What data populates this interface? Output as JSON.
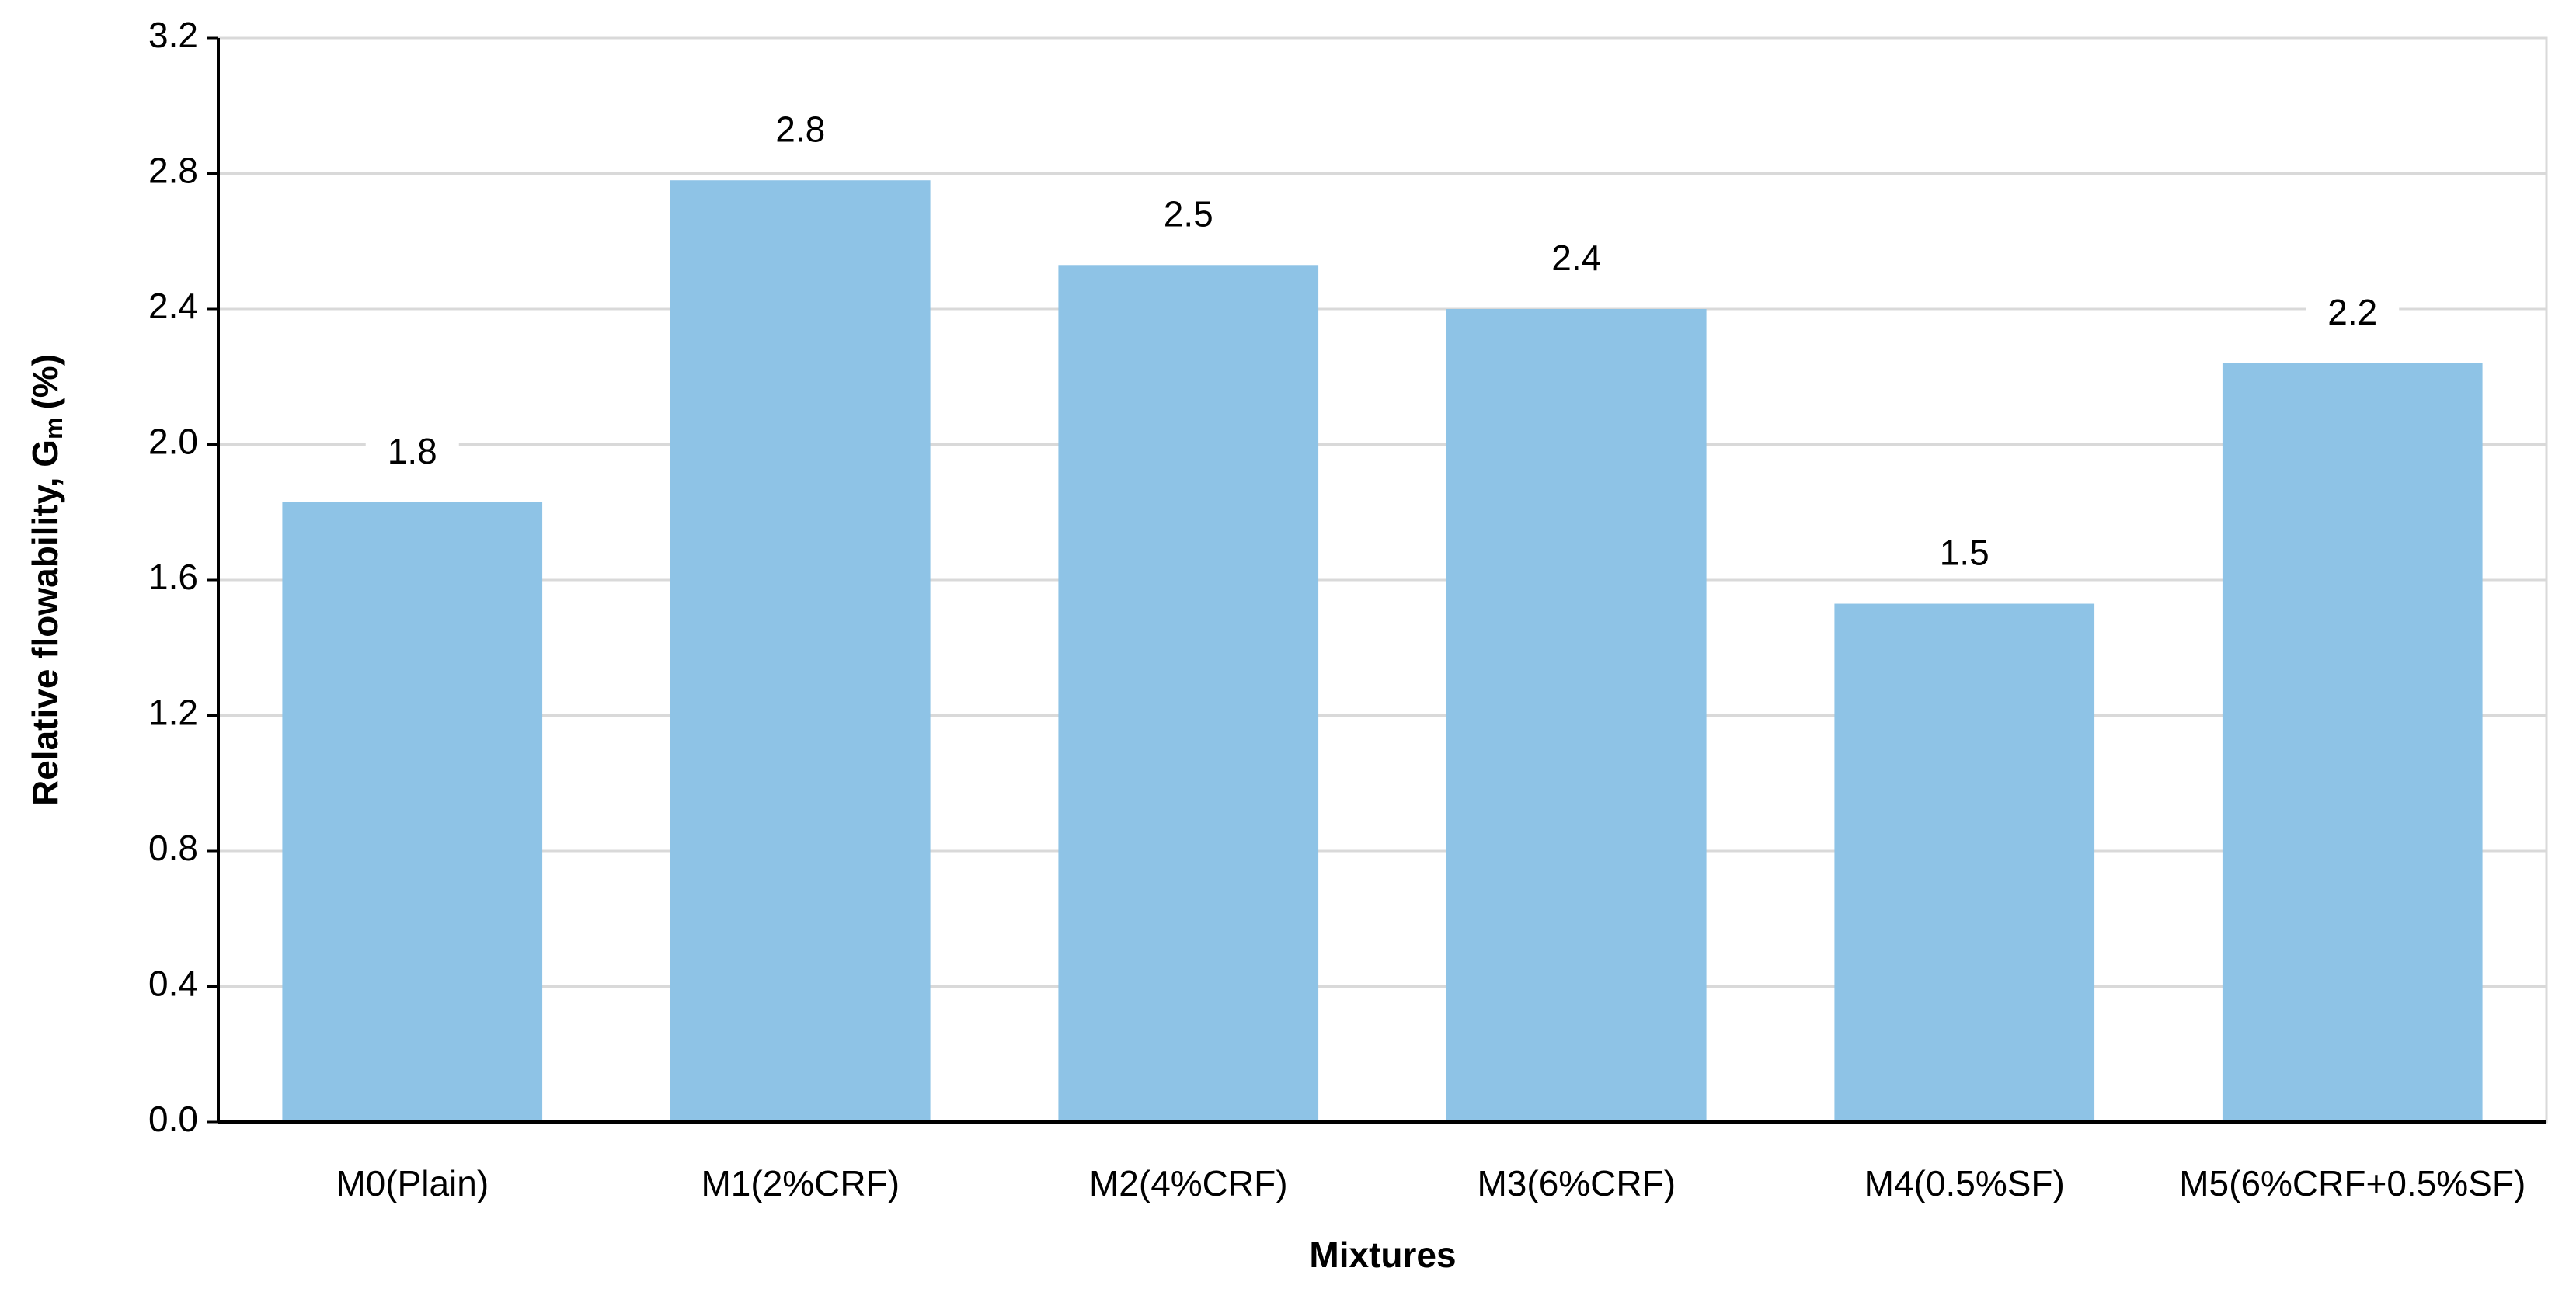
{
  "chart_data": {
    "type": "bar",
    "xlabel": "Mixtures",
    "ylabel": {
      "text": "Relative flowability, G",
      "subscript": "m",
      "suffix": "(%)"
    },
    "categories": [
      "M0(Plain)",
      "M1(2%CRF)",
      "M2(4%CRF)",
      "M3(6%CRF)",
      "M4(0.5%SF)",
      "M5(6%CRF+0.5%SF)"
    ],
    "values": [
      1.83,
      2.78,
      2.53,
      2.4,
      1.53,
      2.24
    ],
    "value_labels": [
      "1.8",
      "2.8",
      "2.5",
      "2.4",
      "1.5",
      "2.2"
    ],
    "color": "#8ec3e6",
    "ylim": [
      0,
      3.2
    ],
    "yticks": [
      {
        "value": 0,
        "label": "0.0"
      },
      0.4,
      0.8,
      1.2,
      1.6,
      {
        "value": 2,
        "label": "2.0"
      },
      2.4,
      2.8,
      3.2
    ],
    "grid": true
  }
}
